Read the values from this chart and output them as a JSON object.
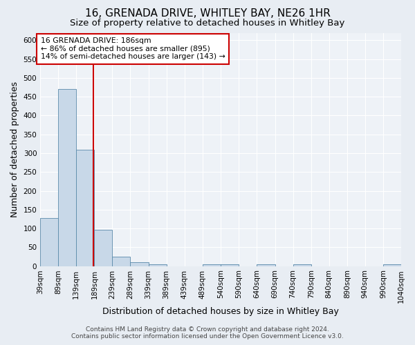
{
  "title": "16, GRENADA DRIVE, WHITLEY BAY, NE26 1HR",
  "subtitle": "Size of property relative to detached houses in Whitley Bay",
  "xlabel": "Distribution of detached houses by size in Whitley Bay",
  "ylabel": "Number of detached properties",
  "footer_line1": "Contains HM Land Registry data © Crown copyright and database right 2024.",
  "footer_line2": "Contains public sector information licensed under the Open Government Licence v3.0.",
  "bar_edges": [
    39,
    89,
    139,
    189,
    239,
    289,
    339,
    389,
    439,
    489,
    540,
    590,
    640,
    690,
    740,
    790,
    840,
    890,
    940,
    990,
    1040
  ],
  "bar_heights": [
    128,
    470,
    310,
    96,
    25,
    10,
    5,
    0,
    0,
    5,
    5,
    0,
    5,
    0,
    5,
    0,
    0,
    0,
    0,
    5
  ],
  "bar_color": "#c8d8e8",
  "bar_edge_color": "#5a8aaa",
  "property_size": 186,
  "vline_color": "#cc0000",
  "annotation_line1": "16 GRENADA DRIVE: 186sqm",
  "annotation_line2": "← 86% of detached houses are smaller (895)",
  "annotation_line3": "14% of semi-detached houses are larger (143) →",
  "annotation_box_color": "white",
  "annotation_border_color": "#cc0000",
  "ylim": [
    0,
    620
  ],
  "yticks": [
    0,
    50,
    100,
    150,
    200,
    250,
    300,
    350,
    400,
    450,
    500,
    550,
    600
  ],
  "bg_color": "#e8edf3",
  "plot_bg_color": "#eef2f7",
  "grid_color": "white",
  "title_fontsize": 11,
  "subtitle_fontsize": 9.5,
  "tick_label_fontsize": 7.5,
  "axis_label_fontsize": 9,
  "footer_fontsize": 6.5
}
